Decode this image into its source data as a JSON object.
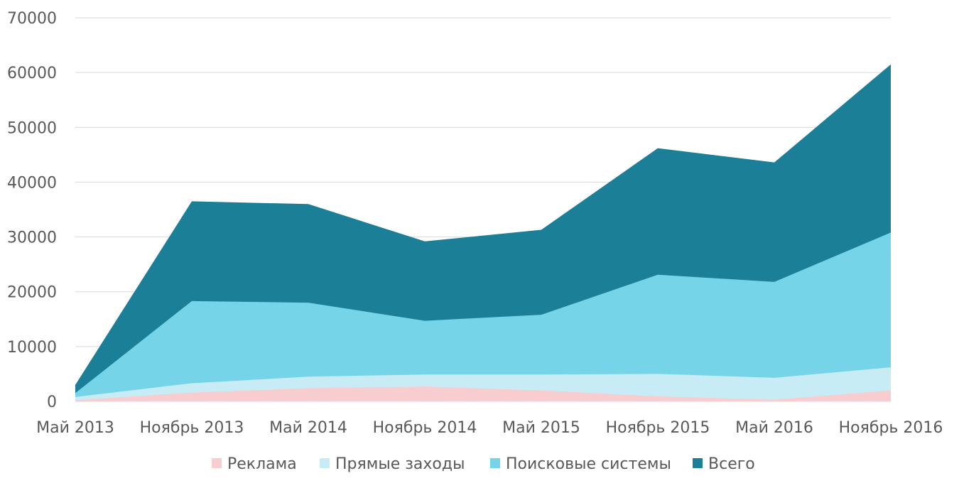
{
  "chart_data": {
    "type": "area",
    "title": "",
    "xlabel": "",
    "ylabel": "",
    "ylim": [
      0,
      70000
    ],
    "ytick_step": 10000,
    "y_ticks": [
      "0",
      "10000",
      "20000",
      "30000",
      "40000",
      "50000",
      "60000",
      "70000"
    ],
    "grid": true,
    "legend_position": "bottom",
    "categories": [
      "Май 2013",
      "Ноябрь 2013",
      "Май 2014",
      "Ноябрь 2014",
      "Май 2015",
      "Ноябрь 2015",
      "Май 2016",
      "Ноябрь 2016"
    ],
    "series": [
      {
        "name": "Всего",
        "color": "#1b7f98",
        "values": [
          3000,
          36500,
          36000,
          29200,
          31300,
          46200,
          43600,
          61500
        ]
      },
      {
        "name": "Поисковые системы",
        "color": "#76d4e8",
        "values": [
          1500,
          18300,
          18000,
          14700,
          15800,
          23100,
          21800,
          30800
        ]
      },
      {
        "name": "Прямые заходы",
        "color": "#c7ecf6",
        "values": [
          800,
          3300,
          4500,
          4900,
          4900,
          5000,
          4300,
          6200
        ]
      },
      {
        "name": "Реклама",
        "color": "#f7cdd0",
        "values": [
          200,
          1600,
          2400,
          2700,
          2000,
          900,
          300,
          2000
        ]
      }
    ],
    "legend_order": [
      "Реклама",
      "Прямые заходы",
      "Поисковые системы",
      "Всего"
    ]
  }
}
